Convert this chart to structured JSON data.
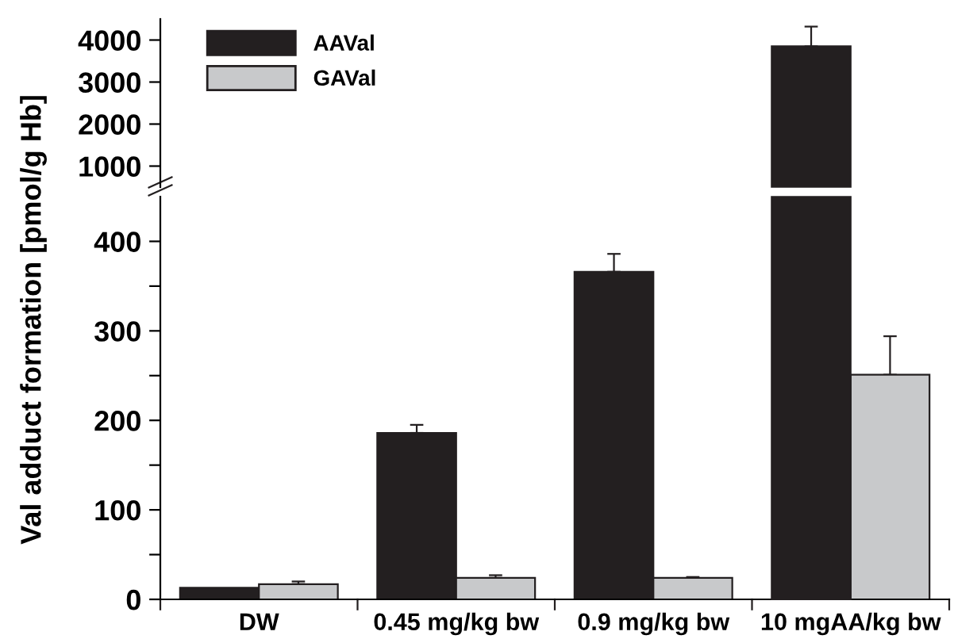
{
  "chart_data": [
    {
      "type": "bar",
      "ylabel": "Val adduct formation [pmol/g Hb]",
      "ylim": [
        500,
        4500
      ],
      "yticks": [
        1000,
        2000,
        3000,
        4000
      ],
      "tick_labels": "y",
      "legend": "top left",
      "series": [
        {
          "name": "AAVal",
          "color": "#231f20",
          "values": [
            null,
            null,
            null,
            3850
          ],
          "errors": [
            null,
            null,
            null,
            [
              3850,
              4320
            ]
          ]
        },
        {
          "name": "GAVal",
          "color": "#c8c9cb",
          "values": [
            null,
            null,
            null,
            null
          ]
        }
      ]
    },
    {
      "type": "bar",
      "categories": [
        "DW",
        "0.45 mg/kg bw",
        "0.9 mg/kg bw",
        "10 mgAA/kg bw"
      ],
      "ylim": [
        0,
        450
      ],
      "yticks": [
        0,
        {
          "value": 50,
          "label": null
        },
        100,
        {
          "value": 150,
          "label": null
        },
        200,
        {
          "value": 250,
          "label": null
        },
        300,
        {
          "value": 350,
          "label": null
        },
        400
      ],
      "series": [
        {
          "color": "#231f20",
          "values": [
            13,
            186,
            366,
            null
          ],
          "errors": [
            null,
            [
              186,
              195
            ],
            [
              366,
              386
            ],
            null
          ]
        },
        {
          "color": "#c8c9cb",
          "values": [
            17,
            24,
            24,
            251
          ],
          "errors": [
            [
              17,
              20
            ],
            [
              24,
              27
            ],
            [
              24,
              25
            ],
            [
              251,
              294
            ]
          ]
        }
      ]
    }
  ]
}
